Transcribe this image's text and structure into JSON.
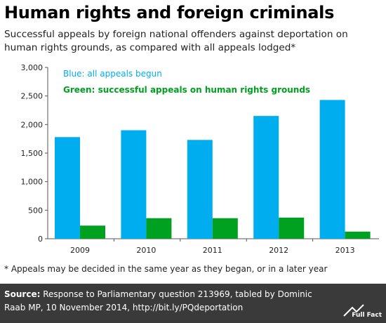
{
  "header": {
    "title": "Human rights and foreign criminals",
    "subtitle": "Successful appeals by foreign national offenders against deportation on human rights grounds, as compared with all appeals lodged*"
  },
  "chart_data": {
    "type": "bar",
    "categories": [
      "2009",
      "2010",
      "2011",
      "2012",
      "2013"
    ],
    "series": [
      {
        "name": "Blue: all appeals begun",
        "color": "#00aeef",
        "values": [
          1780,
          1900,
          1730,
          2150,
          2430
        ]
      },
      {
        "name": "Green: successful  appeals on human rights grounds",
        "color": "#00a020",
        "values": [
          230,
          360,
          360,
          370,
          125
        ]
      }
    ],
    "yticks": [
      "0",
      "500",
      "1,000",
      "1,500",
      "2,000",
      "2,500",
      "3,000"
    ],
    "ylim": [
      0,
      3000
    ],
    "grid": false,
    "legend_position": "top-left"
  },
  "footnote": "* Appeals may be decided in the same year as they began, or in a later year",
  "footer": {
    "source_label": "Source:",
    "source_text": " Response to Parliamentary question 213969, tabled by Dominic Raab MP, 10 November 2014, http://bit.ly/PQdeportation",
    "logo_text": "Full Fact",
    "background": "#3a3a3a"
  }
}
